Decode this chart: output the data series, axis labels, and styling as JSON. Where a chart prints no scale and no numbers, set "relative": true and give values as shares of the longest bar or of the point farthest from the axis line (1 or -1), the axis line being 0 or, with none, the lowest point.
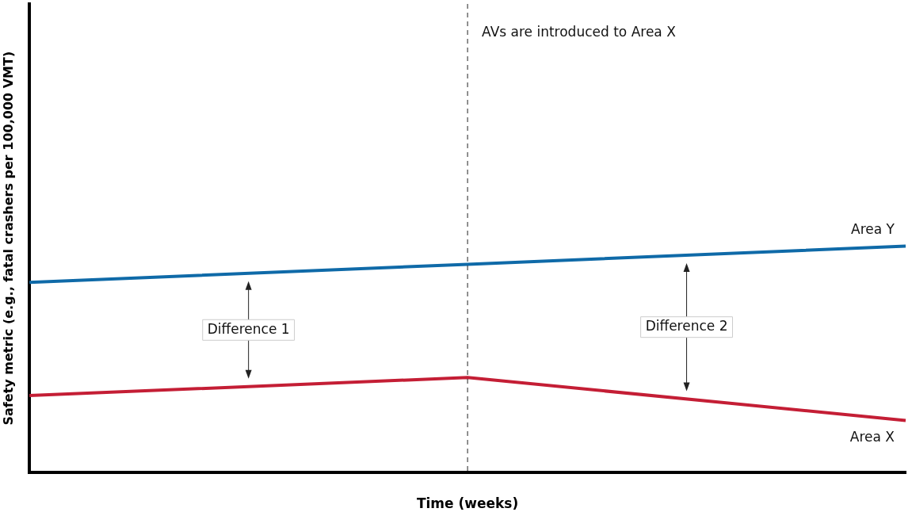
{
  "chart_data": {
    "type": "line",
    "xlabel": "Time (weeks)",
    "ylabel": "Safety metric (e.g., fatal crashers per 100,000 VMT)",
    "relative": true,
    "categories": [
      null,
      null,
      null
    ],
    "series": [
      {
        "name": "Area Y",
        "color": "#0f6aa8",
        "values": [
          0.84,
          0.92,
          1
        ]
      },
      {
        "name": "Area X",
        "color": "#c41e35",
        "values": [
          0.34,
          0.42,
          0.23
        ]
      }
    ],
    "annotations": [
      "AVs are introduced to Area X",
      "Difference 1",
      "Difference 2"
    ],
    "grid": false,
    "legend": false,
    "marker": "none",
    "line_style": "solid"
  }
}
